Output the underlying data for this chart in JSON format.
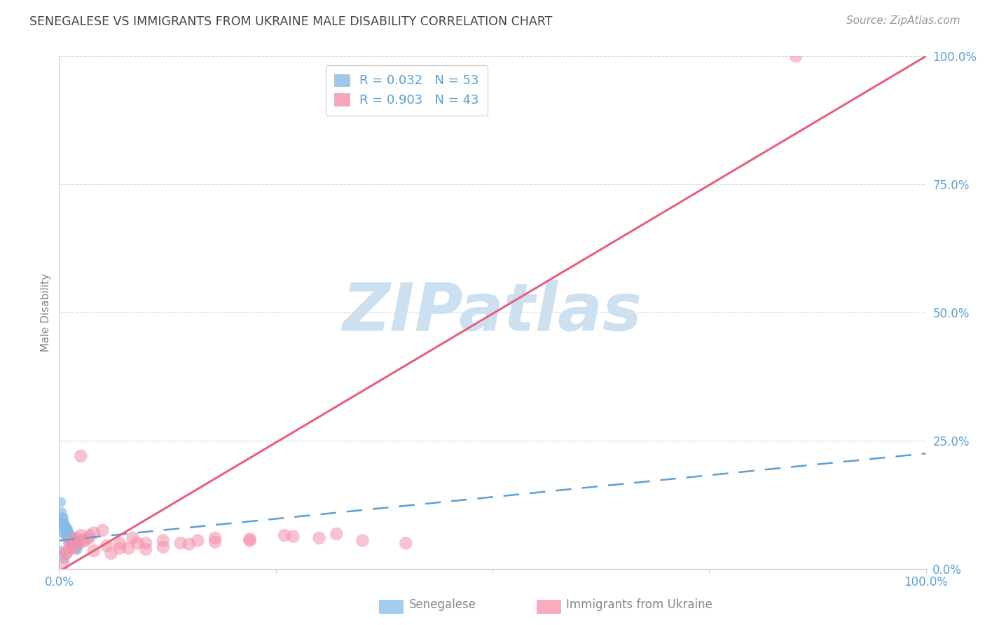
{
  "title": "SENEGALESE VS IMMIGRANTS FROM UKRAINE MALE DISABILITY CORRELATION CHART",
  "source": "Source: ZipAtlas.com",
  "ylabel": "Male Disability",
  "xlabel": "",
  "xlim": [
    0,
    1.0
  ],
  "ylim": [
    0,
    1.0
  ],
  "ytick_labels": [
    "0.0%",
    "25.0%",
    "50.0%",
    "75.0%",
    "100.0%"
  ],
  "ytick_positions": [
    0.0,
    0.25,
    0.5,
    0.75,
    1.0
  ],
  "background_color": "#ffffff",
  "watermark_text": "ZIPatlas",
  "watermark_color": "#cce0f0",
  "blue_R": 0.032,
  "blue_N": 53,
  "pink_R": 0.903,
  "pink_N": 43,
  "legend_blue_label": "Senegalese",
  "legend_pink_label": "Immigrants from Ukraine",
  "blue_color": "#85bbea",
  "pink_color": "#f590aa",
  "blue_line_color": "#5b9fd4",
  "pink_line_color": "#e8607a",
  "blue_scatter_x": [
    0.005,
    0.008,
    0.01,
    0.012,
    0.005,
    0.007,
    0.009,
    0.011,
    0.013,
    0.015,
    0.004,
    0.006,
    0.008,
    0.01,
    0.012,
    0.014,
    0.016,
    0.018,
    0.02,
    0.022,
    0.003,
    0.005,
    0.007,
    0.009,
    0.011,
    0.013,
    0.015,
    0.017,
    0.019,
    0.021,
    0.002,
    0.004,
    0.006,
    0.008,
    0.01,
    0.012,
    0.014,
    0.016,
    0.018,
    0.02,
    0.003,
    0.005,
    0.007,
    0.009,
    0.011,
    0.013,
    0.015,
    0.017,
    0.019,
    0.021,
    0.006,
    0.01,
    0.014
  ],
  "blue_scatter_y": [
    0.08,
    0.07,
    0.065,
    0.06,
    0.1,
    0.085,
    0.075,
    0.07,
    0.065,
    0.06,
    0.09,
    0.08,
    0.075,
    0.07,
    0.065,
    0.06,
    0.055,
    0.05,
    0.048,
    0.045,
    0.11,
    0.09,
    0.08,
    0.075,
    0.07,
    0.065,
    0.062,
    0.058,
    0.055,
    0.052,
    0.13,
    0.1,
    0.09,
    0.082,
    0.075,
    0.068,
    0.063,
    0.058,
    0.054,
    0.05,
    0.035,
    0.07,
    0.065,
    0.06,
    0.056,
    0.052,
    0.048,
    0.044,
    0.04,
    0.037,
    0.02,
    0.078,
    0.055
  ],
  "pink_scatter_x": [
    0.005,
    0.008,
    0.012,
    0.016,
    0.02,
    0.025,
    0.03,
    0.035,
    0.04,
    0.05,
    0.06,
    0.07,
    0.08,
    0.09,
    0.1,
    0.12,
    0.14,
    0.16,
    0.18,
    0.22,
    0.26,
    0.3,
    0.35,
    0.4,
    0.008,
    0.012,
    0.016,
    0.022,
    0.028,
    0.034,
    0.04,
    0.055,
    0.07,
    0.085,
    0.1,
    0.12,
    0.15,
    0.18,
    0.22,
    0.27,
    0.32,
    0.85,
    0.025
  ],
  "pink_scatter_y": [
    0.01,
    0.03,
    0.05,
    0.055,
    0.06,
    0.065,
    0.055,
    0.065,
    0.07,
    0.075,
    0.03,
    0.04,
    0.04,
    0.05,
    0.05,
    0.055,
    0.05,
    0.055,
    0.06,
    0.055,
    0.065,
    0.06,
    0.055,
    0.05,
    0.03,
    0.04,
    0.04,
    0.048,
    0.055,
    0.06,
    0.035,
    0.045,
    0.05,
    0.06,
    0.038,
    0.042,
    0.048,
    0.052,
    0.058,
    0.063,
    0.068,
    1.0,
    0.22
  ],
  "blue_line_y_intercept": 0.055,
  "blue_line_slope": 0.17,
  "pink_line_y_intercept": -0.005,
  "pink_line_slope": 1.005,
  "grid_color": "#d8d8d8",
  "tick_color": "#5b9fd4",
  "title_color": "#444444",
  "axis_label_color": "#888888",
  "source_color": "#999999"
}
